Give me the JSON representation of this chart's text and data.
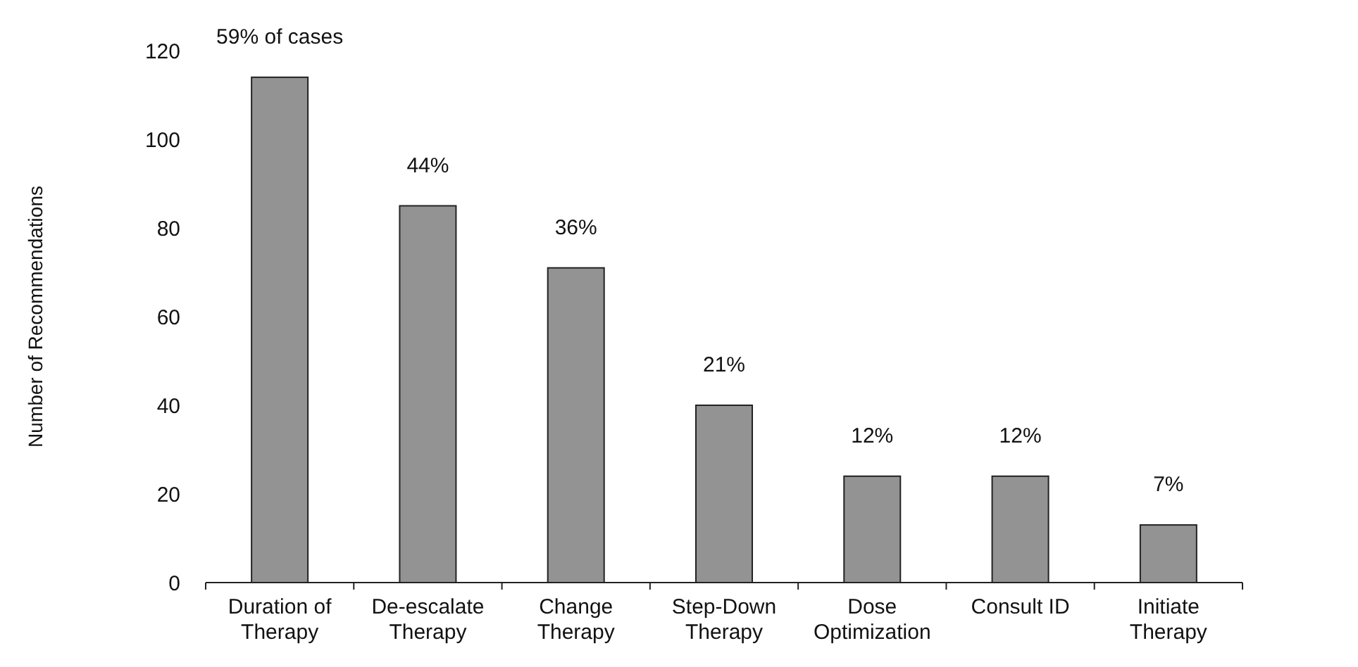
{
  "chart_data": {
    "type": "bar",
    "ylabel": "Number of Recommendations",
    "categories": [
      "Duration of Therapy",
      "De-escalate Therapy",
      "Change Therapy",
      "Step-Down Therapy",
      "Dose Optimization",
      "Consult ID",
      "Initiate Therapy"
    ],
    "values": [
      114,
      85,
      71,
      40,
      24,
      24,
      13
    ],
    "annotations": [
      {
        "text": "59% of cases",
        "x": "Duration of Therapy",
        "y": 114
      },
      {
        "text": "44%",
        "x": "De-escalate Therapy",
        "y": 85
      },
      {
        "text": "36%",
        "x": "Change Therapy",
        "y": 71
      },
      {
        "text": "21%",
        "x": "Step-Down Therapy",
        "y": 40
      },
      {
        "text": "12%",
        "x": "Dose Optimization",
        "y": 24
      },
      {
        "text": "12%",
        "x": "Consult ID",
        "y": 24
      },
      {
        "text": "7%",
        "x": "Initiate Therapy",
        "y": 13
      }
    ],
    "color": "#939393",
    "ylim": [
      0,
      120
    ],
    "yticks": [
      0,
      20,
      40,
      60,
      80,
      100,
      120
    ],
    "grid": false
  }
}
